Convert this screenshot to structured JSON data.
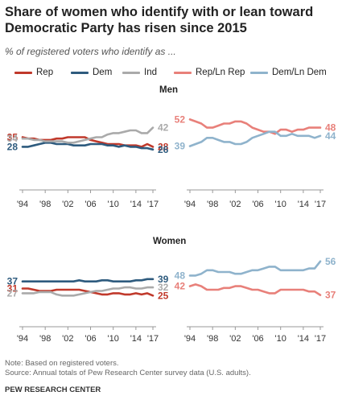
{
  "header": {
    "title": "Share of women who identify with or lean toward Democratic Party has risen since 2015",
    "subtitle": "% of registered voters who identify as ..."
  },
  "legend": {
    "items": [
      {
        "label": "Rep",
        "color": "#c0392b"
      },
      {
        "label": "Dem",
        "color": "#2e5b7e"
      },
      {
        "label": "Ind",
        "color": "#aaaaaa"
      },
      {
        "label": "Rep/Ln Rep",
        "color": "#e8807a"
      },
      {
        "label": "Dem/Ln Dem",
        "color": "#8fb3cc"
      }
    ]
  },
  "panels": {
    "men_label": "Men",
    "women_label": "Women"
  },
  "footer": {
    "note": "Note: Based on registered voters.",
    "source": "Source: Annual totals of Pew Research Center survey data (U.S. adults).",
    "brand": "PEW RESEARCH CENTER"
  },
  "chart_data": [
    {
      "type": "line",
      "panel": "Men",
      "x": [
        1994,
        1995,
        1996,
        1997,
        1998,
        1999,
        2000,
        2001,
        2002,
        2003,
        2004,
        2005,
        2006,
        2007,
        2008,
        2009,
        2010,
        2011,
        2012,
        2013,
        2014,
        2015,
        2016,
        2017
      ],
      "xticks": [
        "'94",
        "'98",
        "'02",
        "'06",
        "'10",
        "'14",
        "'17"
      ],
      "ylim": [
        0,
        60
      ],
      "series": [
        {
          "name": "Rep",
          "color": "#c0392b",
          "values": [
            35,
            34,
            34,
            33,
            33,
            33,
            34,
            34,
            35,
            35,
            35,
            35,
            33,
            32,
            31,
            30,
            30,
            30,
            29,
            29,
            29,
            28,
            30,
            28
          ],
          "start_label": "35",
          "end_label": "28"
        },
        {
          "name": "Dem",
          "color": "#2e5b7e",
          "values": [
            28,
            28,
            29,
            30,
            31,
            31,
            30,
            30,
            30,
            29,
            29,
            29,
            30,
            30,
            30,
            29,
            29,
            28,
            29,
            28,
            28,
            27,
            27,
            26
          ],
          "start_label": "28",
          "end_label": "26"
        },
        {
          "name": "Ind",
          "color": "#aaaaaa",
          "values": [
            34,
            34,
            33,
            33,
            32,
            32,
            32,
            32,
            31,
            31,
            32,
            33,
            34,
            35,
            35,
            37,
            38,
            38,
            39,
            40,
            40,
            38,
            38,
            42
          ],
          "start_label": "34",
          "end_label": "42"
        }
      ]
    },
    {
      "type": "line",
      "panel": "Men",
      "x": [
        1994,
        1995,
        1996,
        1997,
        1998,
        1999,
        2000,
        2001,
        2002,
        2003,
        2004,
        2005,
        2006,
        2007,
        2008,
        2009,
        2010,
        2011,
        2012,
        2013,
        2014,
        2015,
        2016,
        2017
      ],
      "xticks": [
        "'94",
        "'98",
        "'02",
        "'06",
        "'10",
        "'14",
        "'17"
      ],
      "ylim": [
        20,
        60
      ],
      "series": [
        {
          "name": "Rep/Ln Rep",
          "color": "#e8807a",
          "values": [
            52,
            51,
            50,
            48,
            48,
            49,
            50,
            50,
            51,
            51,
            50,
            48,
            47,
            46,
            46,
            45,
            47,
            47,
            46,
            47,
            47,
            48,
            48,
            48
          ],
          "start_label": "52",
          "end_label": "48"
        },
        {
          "name": "Dem/Ln Dem",
          "color": "#8fb3cc",
          "values": [
            39,
            40,
            41,
            43,
            43,
            42,
            41,
            41,
            40,
            40,
            41,
            43,
            44,
            45,
            46,
            46,
            44,
            44,
            45,
            44,
            44,
            44,
            43,
            44
          ],
          "start_label": "39",
          "end_label": "44"
        }
      ]
    },
    {
      "type": "line",
      "panel": "Women",
      "x": [
        1994,
        1995,
        1996,
        1997,
        1998,
        1999,
        2000,
        2001,
        2002,
        2003,
        2004,
        2005,
        2006,
        2007,
        2008,
        2009,
        2010,
        2011,
        2012,
        2013,
        2014,
        2015,
        2016,
        2017
      ],
      "xticks": [
        "'94",
        "'98",
        "'02",
        "'06",
        "'10",
        "'14",
        "'17"
      ],
      "ylim": [
        0,
        60
      ],
      "series": [
        {
          "name": "Rep",
          "color": "#c0392b",
          "values": [
            31,
            31,
            30,
            29,
            29,
            29,
            30,
            30,
            30,
            30,
            30,
            29,
            28,
            27,
            26,
            26,
            27,
            27,
            26,
            26,
            27,
            26,
            27,
            25
          ],
          "start_label": "31",
          "end_label": "25"
        },
        {
          "name": "Dem",
          "color": "#2e5b7e",
          "values": [
            37,
            37,
            37,
            37,
            37,
            37,
            37,
            37,
            37,
            37,
            38,
            37,
            37,
            37,
            38,
            38,
            37,
            37,
            37,
            37,
            38,
            38,
            39,
            39
          ],
          "start_label": "37",
          "end_label": "39"
        },
        {
          "name": "Ind",
          "color": "#aaaaaa",
          "values": [
            27,
            27,
            27,
            28,
            28,
            28,
            26,
            25,
            25,
            25,
            26,
            27,
            28,
            29,
            29,
            30,
            31,
            31,
            32,
            32,
            31,
            31,
            32,
            32
          ],
          "start_label": "27",
          "end_label": "32"
        }
      ]
    },
    {
      "type": "line",
      "panel": "Women",
      "x": [
        1994,
        1995,
        1996,
        1997,
        1998,
        1999,
        2000,
        2001,
        2002,
        2003,
        2004,
        2005,
        2006,
        2007,
        2008,
        2009,
        2010,
        2011,
        2012,
        2013,
        2014,
        2015,
        2016,
        2017
      ],
      "xticks": [
        "'94",
        "'98",
        "'02",
        "'06",
        "'10",
        "'14",
        "'17"
      ],
      "ylim": [
        20,
        60
      ],
      "series": [
        {
          "name": "Rep/Ln Rep",
          "color": "#e8807a",
          "values": [
            42,
            43,
            42,
            40,
            40,
            40,
            41,
            41,
            42,
            42,
            41,
            40,
            40,
            39,
            38,
            38,
            40,
            40,
            40,
            40,
            40,
            39,
            39,
            37
          ],
          "start_label": "42",
          "end_label": "37"
        },
        {
          "name": "Dem/Ln Dem",
          "color": "#8fb3cc",
          "values": [
            48,
            48,
            49,
            51,
            51,
            50,
            50,
            50,
            49,
            49,
            50,
            51,
            51,
            52,
            53,
            53,
            51,
            51,
            51,
            51,
            51,
            52,
            52,
            56
          ],
          "start_label": "48",
          "end_label": "56"
        }
      ]
    }
  ]
}
